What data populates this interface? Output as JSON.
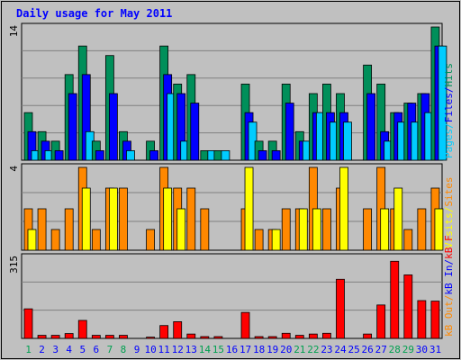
{
  "chart_data": {
    "type": "bar",
    "title": "Daily usage for May 2011",
    "categories": [
      "1",
      "2",
      "3",
      "4",
      "5",
      "6",
      "7",
      "8",
      "9",
      "10",
      "11",
      "12",
      "13",
      "14",
      "15",
      "16",
      "17",
      "18",
      "19",
      "20",
      "21",
      "22",
      "23",
      "24",
      "25",
      "26",
      "27",
      "28",
      "29",
      "30",
      "31"
    ],
    "weekend_days": [
      "1",
      "7",
      "8",
      "14",
      "15",
      "21",
      "22",
      "28",
      "29"
    ],
    "panels": [
      {
        "id": "top",
        "ymax_label": "14",
        "ymax": 14,
        "series": [
          {
            "name": "Pages",
            "color": "#00ccff",
            "values": [
              1,
              1,
              0,
              0,
              3,
              0,
              0,
              1,
              0,
              0,
              7,
              2,
              0,
              1,
              1,
              0,
              4,
              0,
              0,
              0,
              2,
              5,
              4,
              4,
              0,
              0,
              2,
              4,
              4,
              5,
              12
            ]
          },
          {
            "name": "Files",
            "color": "#0000ff",
            "values": [
              3,
              2,
              1,
              7,
              9,
              1,
              7,
              2,
              0,
              1,
              9,
              7,
              6,
              0,
              0,
              0,
              5,
              1,
              1,
              6,
              2,
              5,
              5,
              5,
              0,
              7,
              3,
              5,
              6,
              7,
              12
            ]
          },
          {
            "name": "Hits",
            "color": "#008f5a",
            "values": [
              5,
              3,
              2,
              9,
              12,
              2,
              11,
              3,
              0,
              2,
              12,
              8,
              9,
              1,
              1,
              0,
              8,
              2,
              2,
              8,
              3,
              7,
              8,
              7,
              0,
              10,
              8,
              5,
              6,
              7,
              14
            ]
          }
        ],
        "legend": [
          "Pages",
          "Files",
          "Hits"
        ],
        "legend_colors": [
          "#00ccff",
          "#00ccff",
          "#0000ff",
          "#0000ff",
          "#008f5a"
        ]
      },
      {
        "id": "middle",
        "ymax_label": "4",
        "ymax": 4,
        "series": [
          {
            "name": "Visits",
            "color": "#ffff00",
            "values": [
              1,
              0,
              0,
              0,
              3,
              0,
              3,
              0,
              0,
              0,
              3,
              2,
              0,
              0,
              0,
              0,
              4,
              0,
              1,
              0,
              2,
              2,
              0,
              4,
              0,
              0,
              2,
              3,
              0,
              0,
              2
            ]
          },
          {
            "name": "Sites",
            "color": "#ff8800",
            "values": [
              2,
              2,
              1,
              2,
              4,
              1,
              3,
              3,
              0,
              1,
              4,
              3,
              3,
              2,
              0,
              0,
              2,
              1,
              1,
              2,
              2,
              4,
              2,
              3,
              0,
              2,
              4,
              2,
              1,
              2,
              3
            ]
          }
        ],
        "legend": [
          "Visits",
          "Sites"
        ],
        "legend_colors": [
          "#ffff00",
          "#ffff00",
          "#ff8800"
        ]
      },
      {
        "id": "bottom",
        "ymax_label": "315",
        "ymax": 315,
        "series": [
          {
            "name": "kB F",
            "color": "#ff0000",
            "values": [
              115,
              12,
              12,
              19,
              70,
              12,
              12,
              12,
              0,
              5,
              50,
              65,
              17,
              7,
              7,
              0,
              101,
              7,
              7,
              20,
              12,
              17,
              20,
              230,
              0,
              17,
              130,
              300,
              247,
              147,
              145
            ]
          }
        ],
        "legend": [
          "kB Out",
          "kB In",
          "kB F"
        ],
        "legend_colors": [
          "#ff8800",
          "#ff8800",
          "#0000ff",
          "#0000ff",
          "#ff0000"
        ]
      }
    ],
    "legend_strings": {
      "top": [
        "Pages",
        "/",
        "Files",
        "/",
        "Hits"
      ],
      "middle": [
        "Visits",
        "/",
        "Sites"
      ],
      "bottom": [
        "kB Out",
        "/",
        "kB In",
        "/",
        "kB F"
      ]
    },
    "colors": {
      "frame": "#ffffff",
      "panel_bg": "#c0c0c0",
      "grid": "#808080",
      "title": "#0000ff",
      "weekday_label": "#0000ff",
      "weekend_label": "#00a050",
      "bar_outline": "#000000"
    }
  }
}
